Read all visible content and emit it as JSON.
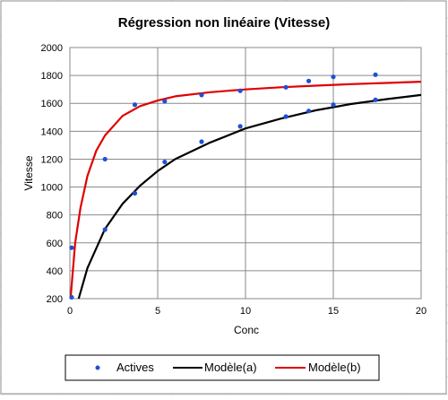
{
  "chart_data": {
    "type": "scatter",
    "title": "Régression non linéaire (Vitesse)",
    "xlabel": "Conc",
    "ylabel": "Vitesse",
    "xlim": [
      0,
      20
    ],
    "ylim": [
      200,
      2000
    ],
    "x_ticks": [
      "0",
      "5",
      "10",
      "15",
      "20"
    ],
    "y_ticks": [
      "200",
      "400",
      "600",
      "800",
      "1000",
      "1200",
      "1400",
      "1600",
      "1800",
      "2000"
    ],
    "grid": true,
    "legend_position": "bottom",
    "series": [
      {
        "name": "Actives",
        "kind": "points",
        "color": "#1f4fd6",
        "x": [
          0.1,
          0.1,
          2.0,
          2.0,
          3.7,
          3.7,
          5.4,
          5.4,
          7.5,
          7.5,
          9.7,
          9.7,
          12.3,
          12.3,
          13.6,
          13.6,
          15.0,
          15.0,
          17.4,
          17.4
        ],
        "y": [
          565,
          210,
          1200,
          695,
          1590,
          955,
          1615,
          1180,
          1660,
          1325,
          1690,
          1435,
          1715,
          1505,
          1760,
          1545,
          1790,
          1590,
          1805,
          1625
        ]
      },
      {
        "name": "Modèle(a)",
        "kind": "line",
        "color": "#000000",
        "x": [
          0.5,
          1,
          2,
          3,
          4,
          5,
          6,
          8,
          10,
          12,
          14,
          16,
          18,
          20
        ],
        "y": [
          200,
          420,
          700,
          880,
          1010,
          1115,
          1200,
          1320,
          1420,
          1490,
          1550,
          1595,
          1630,
          1660
        ]
      },
      {
        "name": "Modèle(b)",
        "kind": "line",
        "color": "#e00000",
        "x": [
          0.05,
          0.3,
          0.6,
          1,
          1.5,
          2,
          3,
          4,
          5,
          6,
          8,
          10,
          12,
          14,
          16,
          18,
          20
        ],
        "y": [
          220,
          600,
          850,
          1080,
          1260,
          1370,
          1510,
          1580,
          1620,
          1650,
          1680,
          1700,
          1715,
          1727,
          1738,
          1746,
          1755
        ]
      }
    ]
  }
}
